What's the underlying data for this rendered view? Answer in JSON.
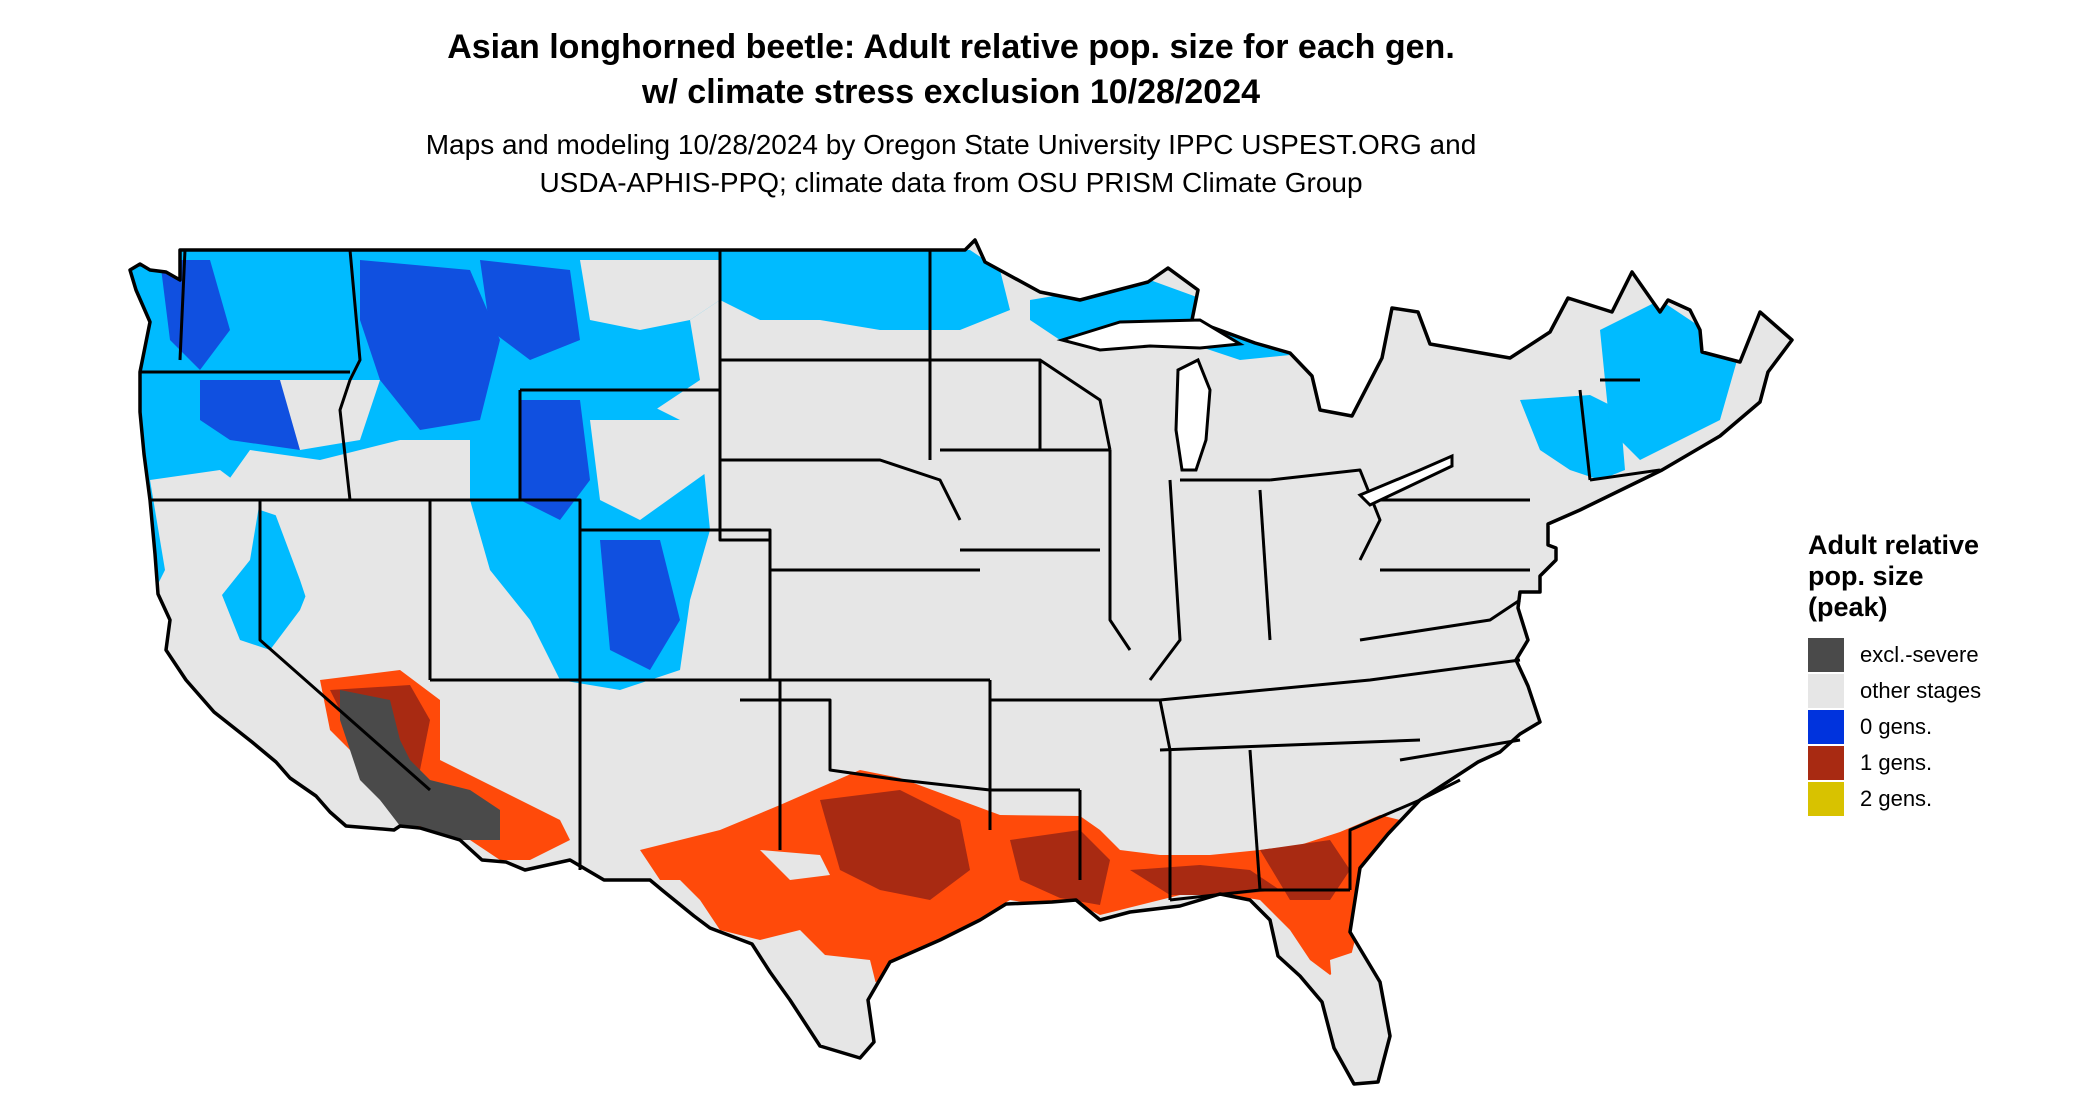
{
  "header": {
    "title_line1": "Asian longhorned beetle: Adult relative pop. size for each gen.",
    "title_line2": "w/ climate stress exclusion 10/28/2024",
    "subtitle_line1": "Maps and modeling 10/28/2024 by Oregon State University IPPC USPEST.ORG and",
    "subtitle_line2": "USDA-APHIS-PPQ; climate data from OSU PRISM Climate Group"
  },
  "legend": {
    "title_line1": "Adult relative",
    "title_line2": "pop. size",
    "title_line3": "(peak)",
    "items": [
      {
        "label": "excl.-severe",
        "color": "#4a4a4a"
      },
      {
        "label": "other stages",
        "color": "#e6e6e6"
      },
      {
        "label": "0 gens.",
        "color": "#0033dd"
      },
      {
        "label": "1 gens.",
        "color": "#a82a12"
      },
      {
        "label": "2 gens.",
        "color": "#d8c200"
      }
    ]
  },
  "map": {
    "colors": {
      "land": "#e6e6e6",
      "light_blue": "#00bbff",
      "dark_blue": "#1050e0",
      "orange": "#ff4a0a",
      "dark_red": "#a82a12",
      "excluded": "#4a4a4a",
      "border": "#000000"
    }
  }
}
